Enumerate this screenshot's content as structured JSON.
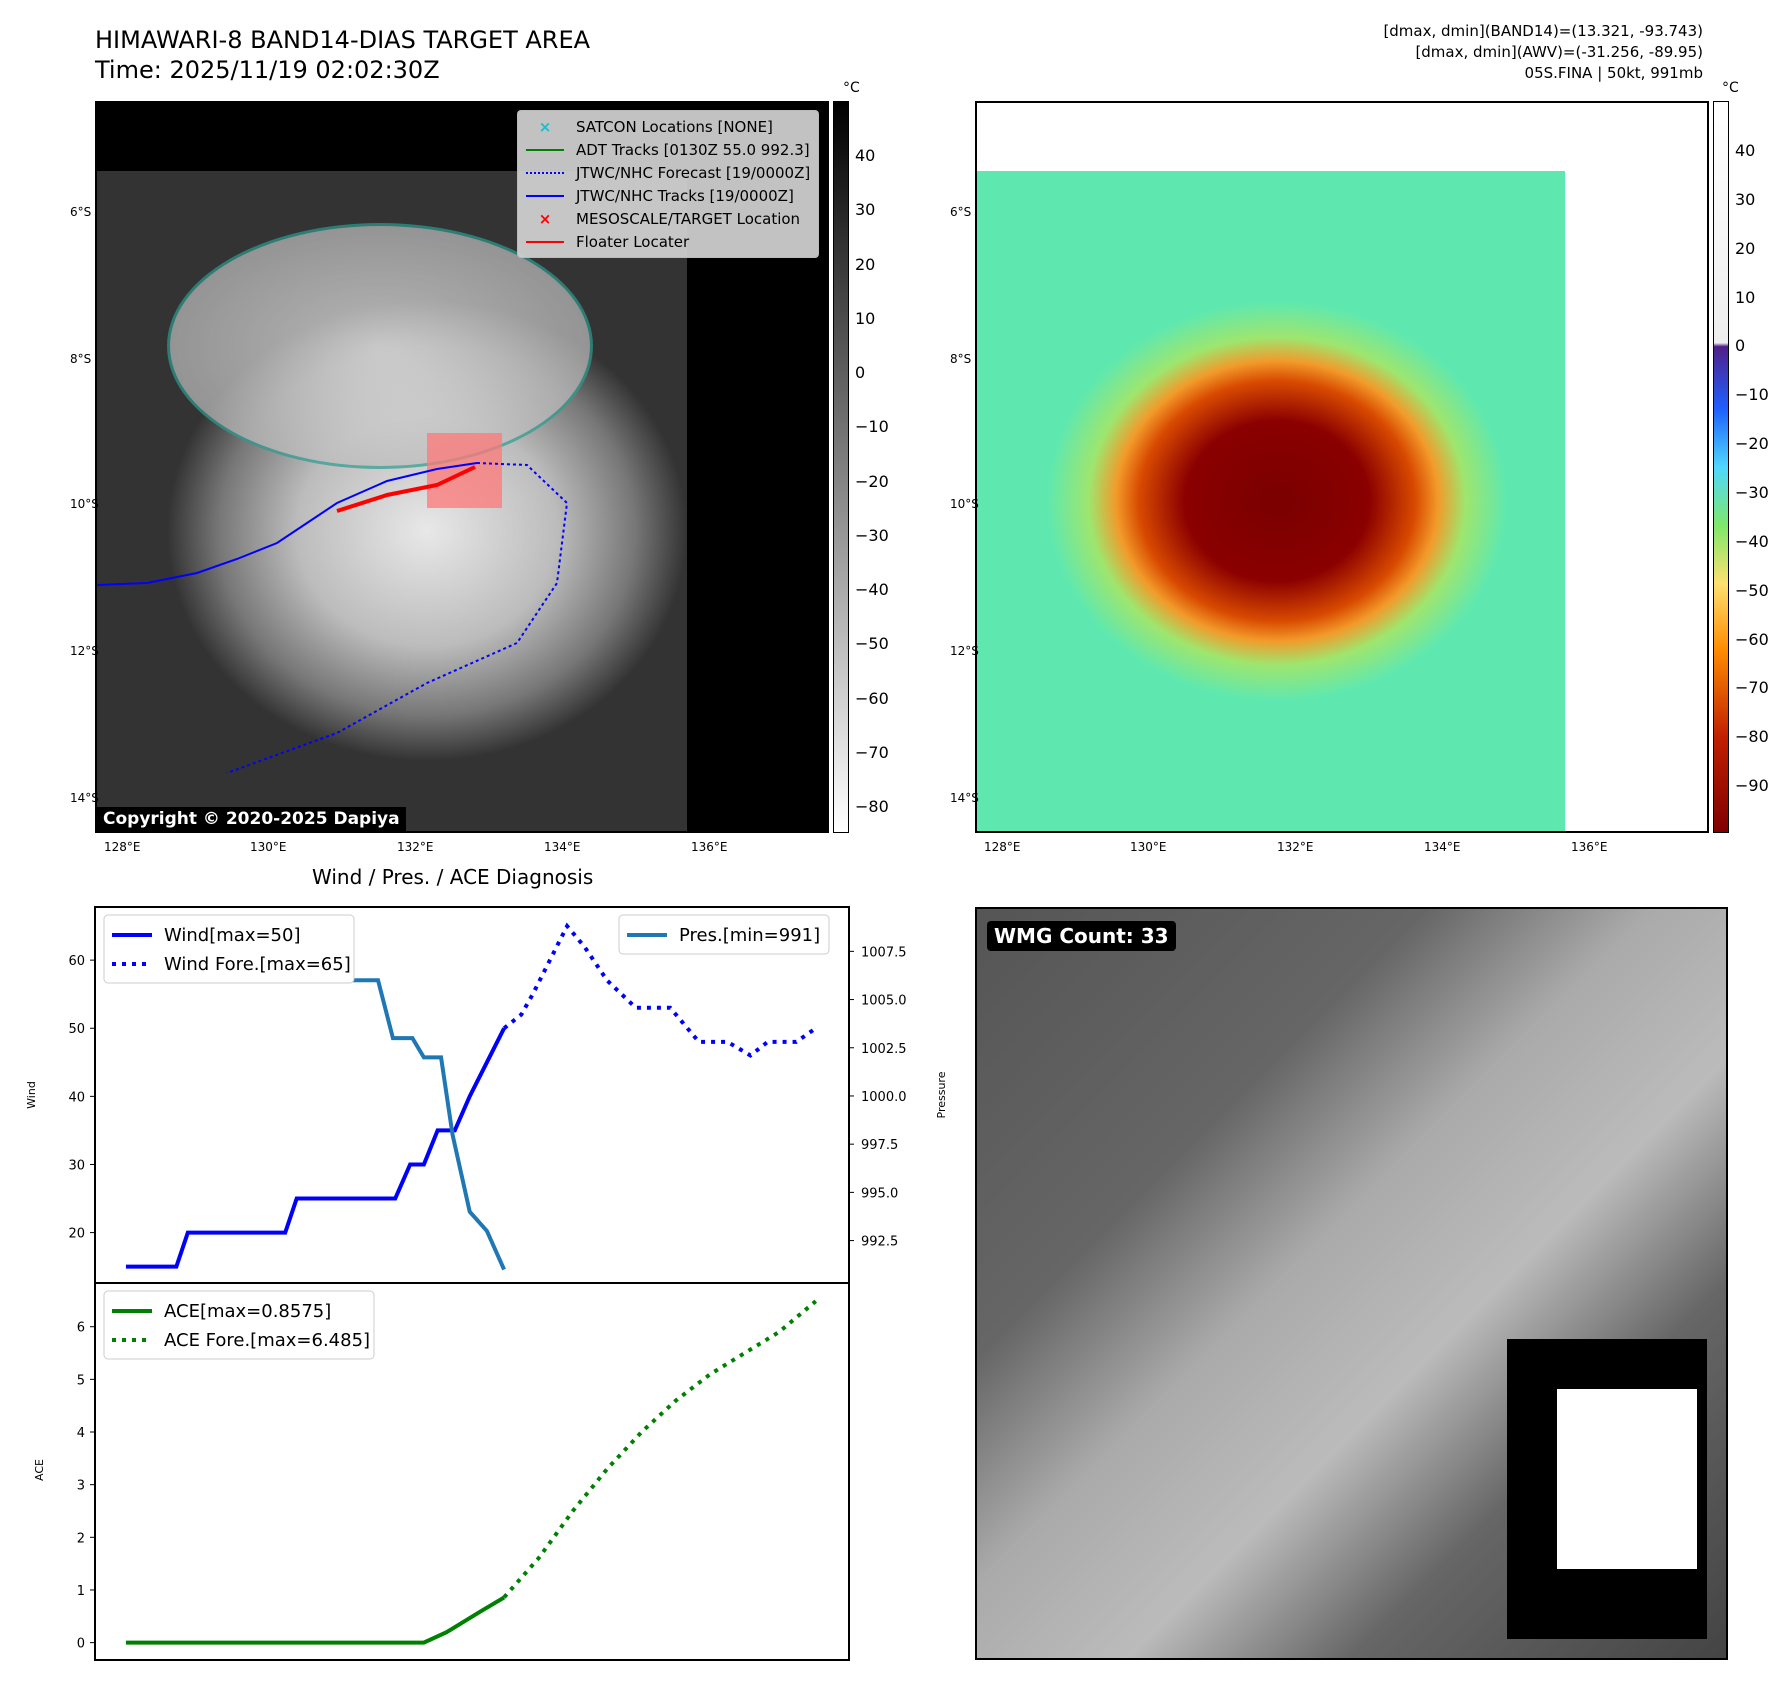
{
  "header": {
    "title": "HIMAWARI-8 BAND14-DIAS TARGET AREA",
    "time": "Time: 2025/11/19 02:02:30Z",
    "info1": "[dmax, dmin](BAND14)=(13.321, -93.743)",
    "info2": "[dmax, dmin](AWV)=(-31.256, -89.95)",
    "info3": "05S.FINA | 50kt, 991mb"
  },
  "maps": {
    "unit": "°C",
    "lat_ticks": [
      "6°S",
      "8°S",
      "10°S",
      "12°S",
      "14°S"
    ],
    "lon_ticks": [
      "128°E",
      "130°E",
      "132°E",
      "134°E",
      "136°E"
    ],
    "left_cbar_ticks": [
      "40",
      "30",
      "20",
      "10",
      "0",
      "−10",
      "−20",
      "−30",
      "−40",
      "−50",
      "−60",
      "−70",
      "−80"
    ],
    "right_cbar_ticks": [
      "40",
      "30",
      "20",
      "10",
      "0",
      "−10",
      "−20",
      "−30",
      "−40",
      "−50",
      "−60",
      "−70",
      "−80",
      "−90"
    ],
    "copyright": "Copyright © 2020-2025 Dapiya",
    "legend": [
      {
        "label": "SATCON Locations [NONE]",
        "color": "#17becf"
      },
      {
        "label": "ADT Tracks [0130Z 55.0 992.3]",
        "color": "#008000"
      },
      {
        "label": "JTWC/NHC Forecast [19/0000Z]",
        "color": "#0000ff"
      },
      {
        "label": "JTWC/NHC Tracks [19/0000Z]",
        "color": "#0000ff"
      },
      {
        "label": "MESOSCALE/TARGET Location",
        "color": "#ff0000"
      },
      {
        "label": "Floater Locater",
        "color": "#ff0000"
      }
    ]
  },
  "wmg": {
    "label": "WMG Count: 33"
  },
  "chart_data": [
    {
      "type": "line",
      "title": "Wind / Pres. / ACE Diagnosis",
      "ylabel": "Wind",
      "y2label": "Pressure",
      "ylim": [
        12.6,
        67.8
      ],
      "y2lim": [
        990.3,
        1009.8
      ],
      "xlim": [
        -2.7,
        63.1
      ],
      "yticks": [
        20,
        30,
        40,
        50,
        60
      ],
      "y2ticks": [
        "992.5",
        "995.0",
        "997.5",
        "1000.0",
        "1002.5",
        "1005.0",
        "1007.5"
      ],
      "series": [
        {
          "name": "Wind[max=50]",
          "color": "#0000ff",
          "style": "solid",
          "axis": "left",
          "points": [
            [
              0,
              15
            ],
            [
              4.4,
              15
            ],
            [
              5.4,
              20
            ],
            [
              13.9,
              20
            ],
            [
              14.9,
              25
            ],
            [
              23.5,
              25
            ],
            [
              24.8,
              30
            ],
            [
              26,
              30
            ],
            [
              27.2,
              35
            ],
            [
              28.7,
              35
            ],
            [
              30,
              40
            ],
            [
              31.5,
              45
            ],
            [
              33,
              50
            ]
          ]
        },
        {
          "name": "Wind Fore.[max=65]",
          "color": "#0000ff",
          "style": "dotted",
          "axis": "left",
          "points": [
            [
              33,
              50
            ],
            [
              34.5,
              52
            ],
            [
              35.5,
              55
            ],
            [
              37,
              60
            ],
            [
              38.5,
              65
            ],
            [
              40,
              62
            ],
            [
              42,
              57
            ],
            [
              44.5,
              53
            ],
            [
              47.5,
              53
            ],
            [
              50,
              48
            ],
            [
              52.5,
              48
            ],
            [
              54.5,
              46
            ],
            [
              56,
              48
            ],
            [
              58.5,
              48
            ],
            [
              60.2,
              50
            ]
          ]
        },
        {
          "name": "Pres.[min=991]",
          "color": "#1f77b4",
          "style": "solid",
          "axis": "right",
          "points": [
            [
              0,
              1009
            ],
            [
              8.5,
              1009
            ],
            [
              10,
              1008
            ],
            [
              12,
              1008
            ],
            [
              13,
              1007
            ],
            [
              15,
              1007
            ],
            [
              17,
              1006
            ],
            [
              22,
              1006
            ],
            [
              23.3,
              1003
            ],
            [
              25,
              1003
            ],
            [
              26,
              1002
            ],
            [
              27.5,
              1002
            ],
            [
              28.5,
              998
            ],
            [
              30,
              994
            ],
            [
              31.5,
              993
            ],
            [
              33,
              991
            ]
          ]
        }
      ]
    },
    {
      "type": "line",
      "ylabel": "ACE",
      "ylim": [
        -0.33,
        6.83
      ],
      "xlim": [
        -2.7,
        63.1
      ],
      "yticks": [
        0,
        1,
        2,
        3,
        4,
        5,
        6
      ],
      "series": [
        {
          "name": "ACE[max=0.8575]",
          "color": "#008000",
          "style": "solid",
          "points": [
            [
              0,
              0
            ],
            [
              26,
              0
            ],
            [
              28,
              0.2
            ],
            [
              29.5,
              0.4
            ],
            [
              31,
              0.6
            ],
            [
              33,
              0.8575
            ]
          ]
        },
        {
          "name": "ACE Fore.[max=6.485]",
          "color": "#008000",
          "style": "dotted",
          "points": [
            [
              33,
              0.86
            ],
            [
              36,
              1.6
            ],
            [
              39,
              2.5
            ],
            [
              42,
              3.3
            ],
            [
              45,
              4.0
            ],
            [
              48,
              4.6
            ],
            [
              51,
              5.1
            ],
            [
              54,
              5.5
            ],
            [
              57,
              5.9
            ],
            [
              60.2,
              6.485
            ]
          ]
        }
      ]
    }
  ]
}
